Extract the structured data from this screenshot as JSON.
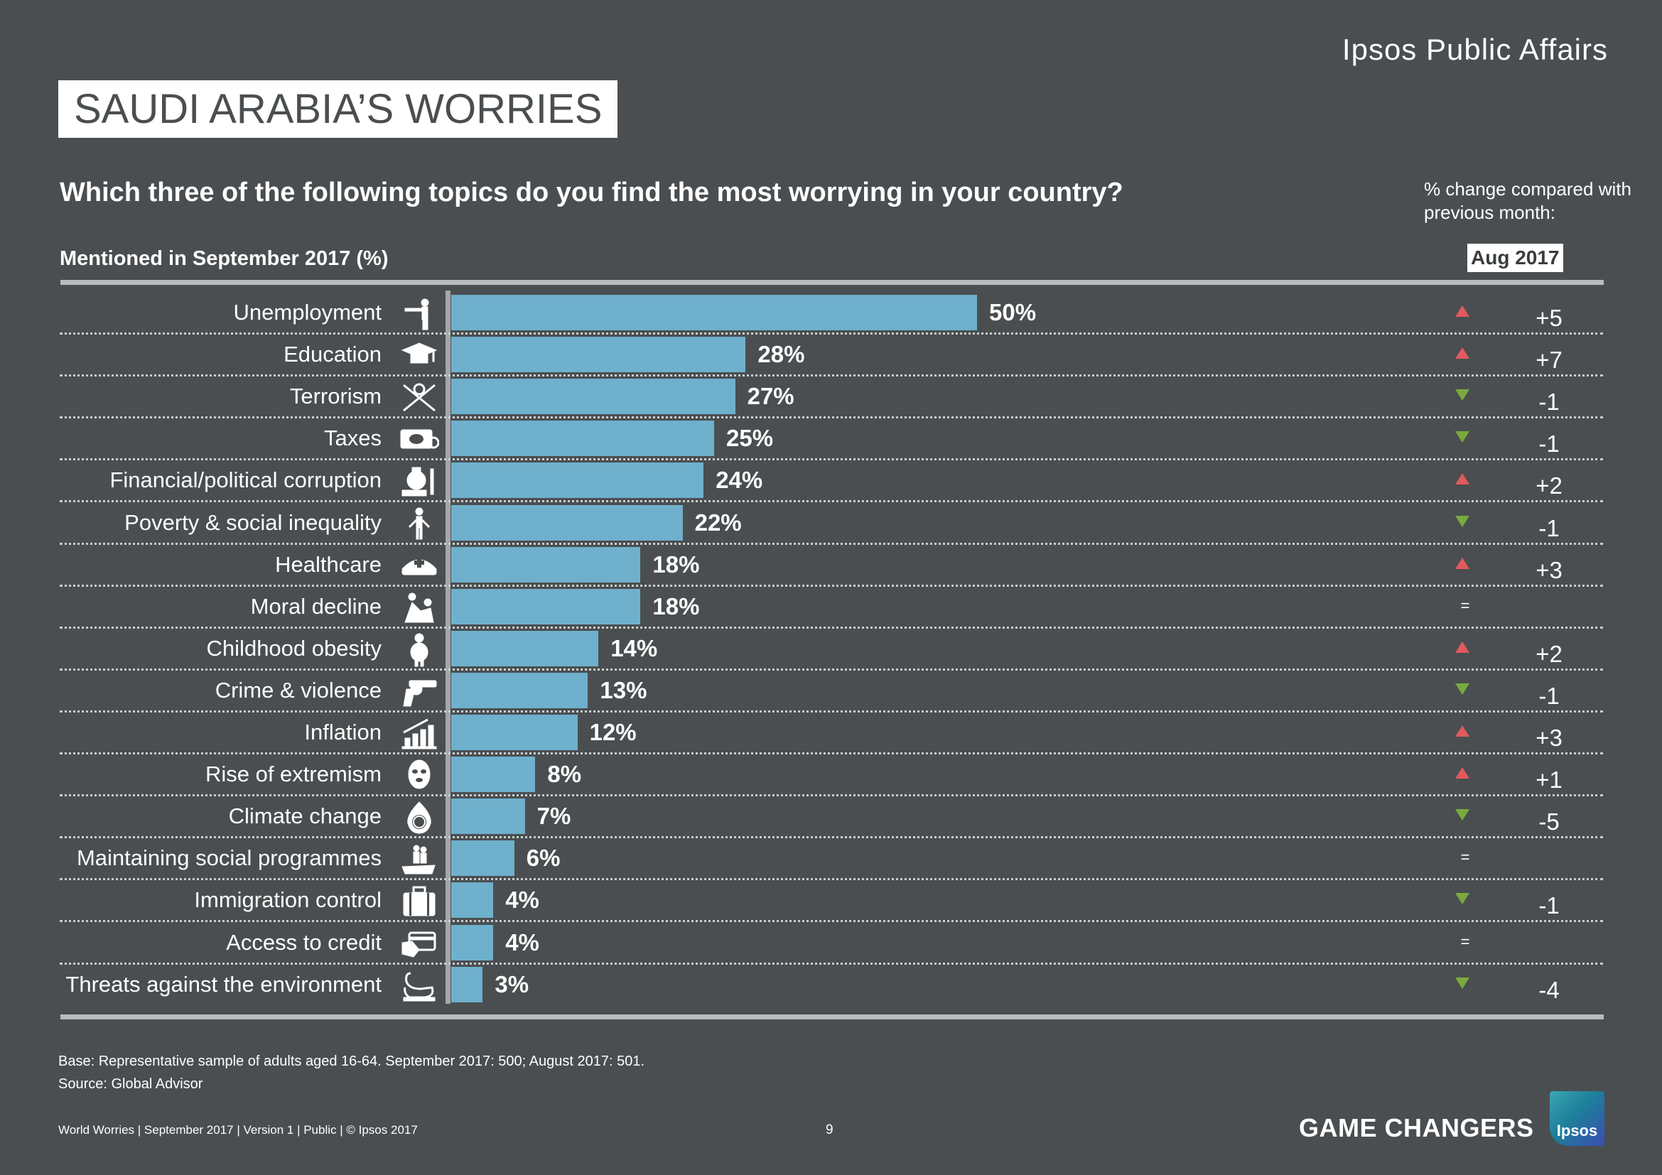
{
  "header": {
    "brand": "Ipsos Public Affairs",
    "title": "SAUDI ARABIA’S WORRIES",
    "question": "Which three of the following topics do you find the most worrying in your country?",
    "mentioned": "Mentioned in September 2017 (%)",
    "change_note": "% change compared with previous month:",
    "change_period": "Aug 2017"
  },
  "colors": {
    "background": "#4a4e50",
    "bar": "#6fb0cc",
    "up": "#e05a5e",
    "down": "#7aaa3d"
  },
  "chart_data": {
    "type": "bar",
    "orientation": "horizontal",
    "title": "SAUDI ARABIA’S WORRIES",
    "xlabel": "Mentioned in September 2017 (%)",
    "ylabel": "",
    "xlim": [
      0,
      50
    ],
    "categories": [
      "Unemployment",
      "Education",
      "Terrorism",
      "Taxes",
      "Financial/political corruption",
      "Poverty & social inequality",
      "Healthcare",
      "Moral decline",
      "Childhood obesity",
      "Crime & violence",
      "Inflation",
      "Rise of extremism",
      "Climate change",
      "Maintaining social programmes",
      "Immigration control",
      "Access to credit",
      "Threats against the environment"
    ],
    "values": [
      50,
      28,
      27,
      25,
      24,
      22,
      18,
      18,
      14,
      13,
      12,
      8,
      7,
      6,
      4,
      4,
      3
    ],
    "value_labels": [
      "50%",
      "28%",
      "27%",
      "25%",
      "24%",
      "22%",
      "18%",
      "18%",
      "14%",
      "13%",
      "12%",
      "8%",
      "7%",
      "6%",
      "4%",
      "4%",
      "3%"
    ],
    "icons": [
      "pointing-man-icon",
      "graduation-cap-icon",
      "weapons-icon",
      "tax-money-icon",
      "money-bag-hand-icon",
      "poor-person-icon",
      "nurse-hat-icon",
      "fighting-people-icon",
      "obese-child-icon",
      "revolver-icon",
      "rising-chart-icon",
      "balaclava-mask-icon",
      "burning-globe-icon",
      "hand-holding-people-icon",
      "suitcase-icon",
      "credit-card-hand-icon",
      "oil-swan-icon"
    ],
    "change_direction": [
      "up",
      "up",
      "down",
      "down",
      "up",
      "down",
      "up",
      "same",
      "up",
      "down",
      "up",
      "up",
      "down",
      "same",
      "down",
      "same",
      "down"
    ],
    "change_labels": [
      "+5",
      "+7",
      "-1",
      "-1",
      "+2",
      "-1",
      "+3",
      "",
      "+2",
      "-1",
      "+3",
      "+1",
      "-5",
      "",
      "-1",
      "",
      "-4"
    ],
    "same_symbol": "="
  },
  "footer": {
    "base": "Base: Representative sample of adults aged 16-64. September 2017: 500; August 2017: 501.",
    "source": "Source: Global Advisor",
    "meta": "World Worries | September 2017 |  Version 1  |  Public | © Ipsos 2017",
    "page": "9",
    "tagline": "GAME CHANGERS",
    "logo_text": "Ipsos"
  }
}
